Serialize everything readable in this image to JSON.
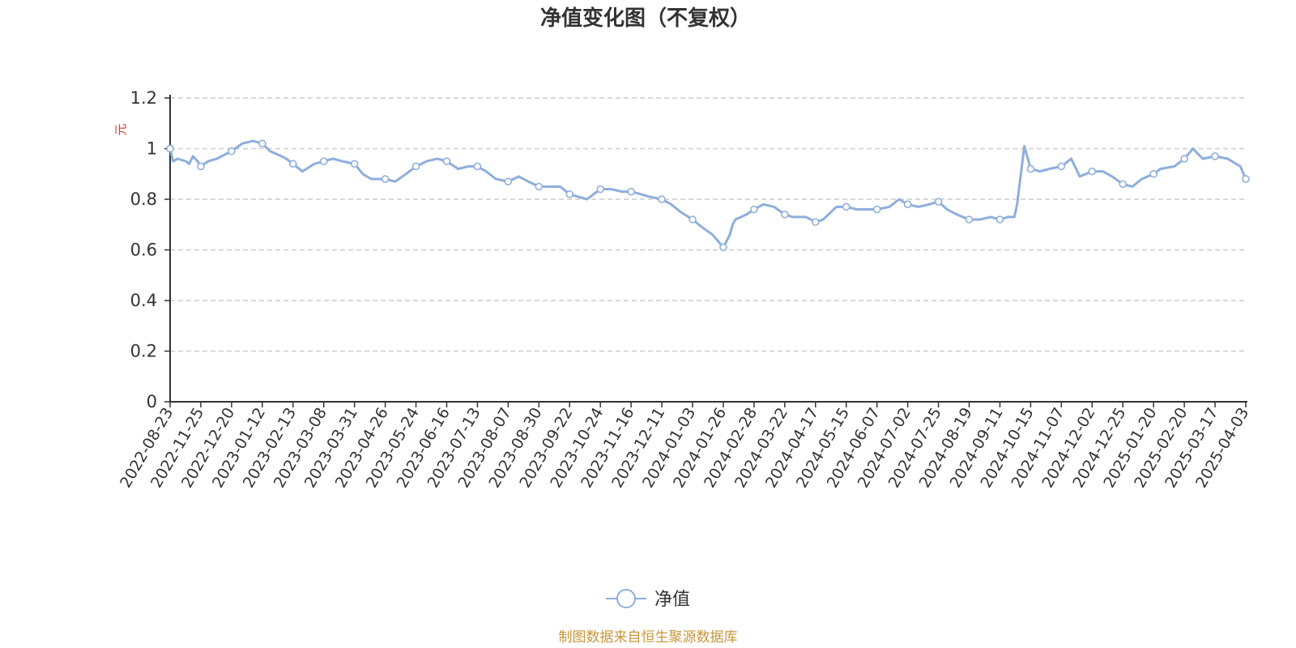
{
  "colors": {
    "series": "#8eaedc",
    "axis": "#333333",
    "grid": "#cccccc",
    "unit": "#e8302a",
    "source": "#c8963c"
  },
  "source_note": "制图数据来自恒生聚源数据库",
  "chart_data": {
    "type": "line",
    "title": "净值变化图（不复权）",
    "ylabel": "元",
    "xlabel": "",
    "ylim": [
      0,
      1.2
    ],
    "yticks": [
      0,
      0.2,
      0.4,
      0.6,
      0.8,
      1,
      1.2
    ],
    "ytick_labels": [
      "0",
      "0.2",
      "0.4",
      "0.6",
      "0.8",
      "1",
      "1.2"
    ],
    "grid": true,
    "legend_position": "bottom-center",
    "xtick_labels": [
      "2022-08-23",
      "2022-11-25",
      "2022-12-20",
      "2023-01-12",
      "2023-02-13",
      "2023-03-08",
      "2023-03-31",
      "2023-04-26",
      "2023-05-24",
      "2023-06-16",
      "2023-07-13",
      "2023-08-07",
      "2023-08-30",
      "2023-09-22",
      "2023-10-24",
      "2023-11-16",
      "2023-12-11",
      "2024-01-03",
      "2024-01-26",
      "2024-02-28",
      "2024-03-22",
      "2024-04-17",
      "2024-05-15",
      "2024-06-07",
      "2024-07-02",
      "2024-07-25",
      "2024-08-19",
      "2024-09-11",
      "2024-10-15",
      "2024-11-07",
      "2024-12-02",
      "2024-12-25",
      "2025-01-20",
      "2025-02-20",
      "2025-03-17",
      "2025-04-03"
    ],
    "series": [
      {
        "name": "净值",
        "x": [
          "2022-08-23",
          "2022-09-01",
          "2022-09-15",
          "2022-10-10",
          "2022-10-20",
          "2022-11-01",
          "2022-11-15",
          "2022-11-25",
          "2022-12-01",
          "2022-12-08",
          "2022-12-20",
          "2022-12-28",
          "2023-01-05",
          "2023-01-12",
          "2023-01-20",
          "2023-02-01",
          "2023-02-06",
          "2023-02-13",
          "2023-02-20",
          "2023-03-01",
          "2023-03-08",
          "2023-03-15",
          "2023-03-22",
          "2023-03-31",
          "2023-04-07",
          "2023-04-14",
          "2023-04-20",
          "2023-04-26",
          "2023-05-05",
          "2023-05-15",
          "2023-05-24",
          "2023-06-01",
          "2023-06-09",
          "2023-06-16",
          "2023-06-26",
          "2023-07-05",
          "2023-07-13",
          "2023-07-20",
          "2023-07-28",
          "2023-08-07",
          "2023-08-15",
          "2023-08-22",
          "2023-08-30",
          "2023-09-07",
          "2023-09-15",
          "2023-09-22",
          "2023-10-10",
          "2023-10-17",
          "2023-10-24",
          "2023-11-01",
          "2023-11-09",
          "2023-11-16",
          "2023-11-24",
          "2023-12-01",
          "2023-12-11",
          "2023-12-18",
          "2023-12-25",
          "2024-01-03",
          "2024-01-10",
          "2024-01-18",
          "2024-01-26",
          "2024-02-02",
          "2024-02-05",
          "2024-02-08",
          "2024-02-20",
          "2024-02-28",
          "2024-03-06",
          "2024-03-14",
          "2024-03-22",
          "2024-03-29",
          "2024-04-09",
          "2024-04-17",
          "2024-04-24",
          "2024-05-06",
          "2024-05-15",
          "2024-05-23",
          "2024-05-31",
          "2024-06-07",
          "2024-06-17",
          "2024-06-25",
          "2024-07-02",
          "2024-07-10",
          "2024-07-18",
          "2024-07-25",
          "2024-08-01",
          "2024-08-09",
          "2024-08-19",
          "2024-08-27",
          "2024-09-04",
          "2024-09-11",
          "2024-09-20",
          "2024-09-27",
          "2024-09-30",
          "2024-10-08",
          "2024-10-15",
          "2024-10-22",
          "2024-10-29",
          "2024-11-07",
          "2024-11-15",
          "2024-11-22",
          "2024-12-02",
          "2024-12-10",
          "2024-12-17",
          "2024-12-25",
          "2025-01-02",
          "2025-01-10",
          "2025-01-20",
          "2025-01-27",
          "2025-02-10",
          "2025-02-20",
          "2025-02-27",
          "2025-03-07",
          "2025-03-17",
          "2025-03-24",
          "2025-03-31",
          "2025-04-03"
        ],
        "values": [
          1.0,
          0.95,
          0.96,
          0.95,
          0.94,
          0.97,
          0.95,
          0.93,
          0.95,
          0.96,
          0.99,
          1.02,
          1.03,
          1.02,
          0.99,
          0.97,
          0.96,
          0.94,
          0.91,
          0.94,
          0.95,
          0.96,
          0.95,
          0.94,
          0.9,
          0.88,
          0.88,
          0.88,
          0.87,
          0.9,
          0.93,
          0.95,
          0.96,
          0.95,
          0.92,
          0.93,
          0.93,
          0.91,
          0.88,
          0.87,
          0.89,
          0.87,
          0.85,
          0.85,
          0.85,
          0.82,
          0.8,
          0.82,
          0.84,
          0.84,
          0.83,
          0.83,
          0.82,
          0.81,
          0.8,
          0.78,
          0.75,
          0.72,
          0.69,
          0.66,
          0.61,
          0.66,
          0.7,
          0.72,
          0.74,
          0.76,
          0.78,
          0.77,
          0.74,
          0.73,
          0.73,
          0.71,
          0.72,
          0.77,
          0.77,
          0.76,
          0.76,
          0.76,
          0.77,
          0.8,
          0.78,
          0.77,
          0.78,
          0.79,
          0.76,
          0.74,
          0.72,
          0.72,
          0.73,
          0.72,
          0.73,
          0.73,
          0.78,
          1.01,
          0.92,
          0.91,
          0.92,
          0.93,
          0.96,
          0.89,
          0.91,
          0.91,
          0.89,
          0.86,
          0.85,
          0.88,
          0.9,
          0.92,
          0.93,
          0.96,
          1.0,
          0.96,
          0.97,
          0.96,
          0.93,
          0.88
        ],
        "markers": [
          "2022-08-23",
          "2022-11-25",
          "2022-12-20",
          "2023-01-12",
          "2023-02-13",
          "2023-03-08",
          "2023-03-31",
          "2023-04-26",
          "2023-05-24",
          "2023-06-16",
          "2023-07-13",
          "2023-08-07",
          "2023-08-30",
          "2023-09-22",
          "2023-10-24",
          "2023-11-16",
          "2023-12-11",
          "2024-01-03",
          "2024-01-26",
          "2024-02-28",
          "2024-03-22",
          "2024-04-17",
          "2024-05-15",
          "2024-06-07",
          "2024-07-02",
          "2024-07-25",
          "2024-08-19",
          "2024-09-11",
          "2024-10-15",
          "2024-11-07",
          "2024-12-02",
          "2024-12-25",
          "2025-01-20",
          "2025-02-20",
          "2025-03-17",
          "2025-04-03"
        ]
      }
    ]
  }
}
